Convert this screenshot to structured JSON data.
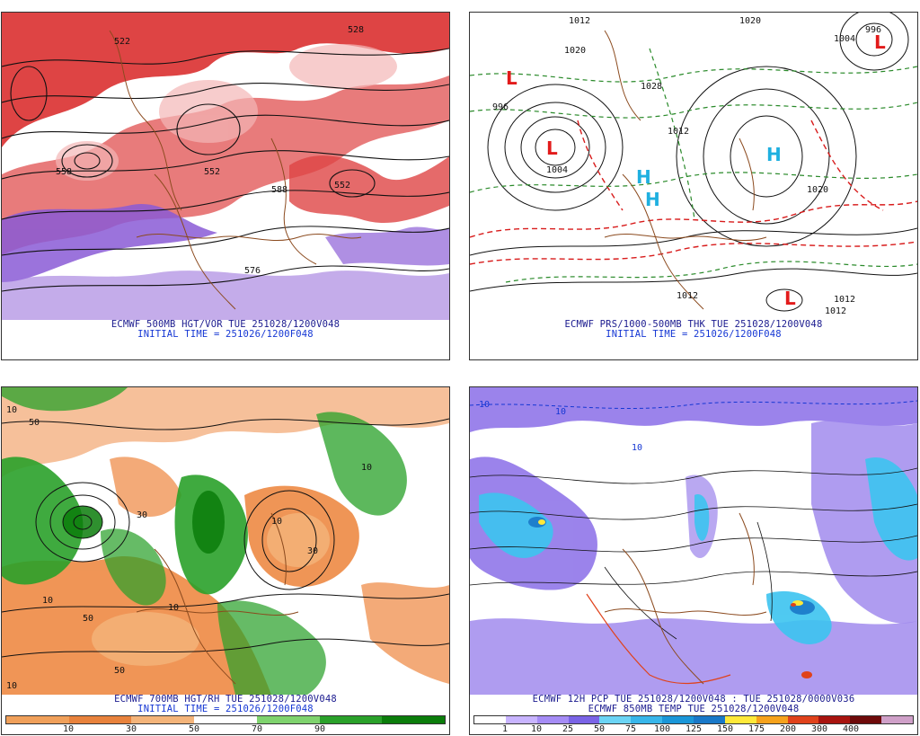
{
  "panels": {
    "p1": {
      "caption": "ECMWF 500MB HGT/VOR TUE 251028/1200V048",
      "initial": "INITIAL TIME = 251026/1200F048"
    },
    "p2": {
      "caption": "ECMWF PRS/1000-500MB THK TUE 251028/1200V048",
      "initial": "INITIAL TIME = 251026/1200F048"
    },
    "p3": {
      "caption": "ECMWF 700MB HGT/RH TUE 251028/1200V048",
      "initial": "INITIAL TIME = 251026/1200F048",
      "legend": {
        "colors": [
          "#f0a05a",
          "#e8823c",
          "#f4b47a",
          "#ffffff",
          "#7fd36e",
          "#2aa12a",
          "#0b7d0b"
        ],
        "ticks": [
          "10",
          "30",
          "50",
          "70",
          "90"
        ]
      }
    },
    "p4": {
      "caption": "ECMWF 12H PCP TUE 251028/1200V048 : TUE 251028/0000V036",
      "caption2": "ECMWF 850MB TEMP TUE 251028/1200V048",
      "legend": {
        "colors": [
          "#ffffff",
          "#c8b4ff",
          "#a58cf5",
          "#7a64e6",
          "#6bd4f5",
          "#38b6ea",
          "#1a96d8",
          "#1978c8",
          "#ffe93a",
          "#f6a21c",
          "#e0421b",
          "#a8140f",
          "#6e0a0a",
          "#cfa0c8"
        ],
        "ticks": [
          "1",
          "10",
          "25",
          "50",
          "75",
          "100",
          "125",
          "150",
          "175",
          "200",
          "300",
          "400"
        ]
      }
    }
  },
  "map_labels": {
    "p1": [
      "522",
      "552",
      "576",
      "528",
      "552",
      "588",
      "558"
    ],
    "p2": [
      "1012",
      "1020",
      "1028",
      "996",
      "1012",
      "1004",
      "1020",
      "1012",
      "1020",
      "1012",
      "1012",
      "996",
      "1004",
      "L",
      "L",
      "L",
      "H",
      "H",
      "H",
      "L"
    ],
    "p3": [
      "10",
      "50",
      "10",
      "30",
      "50",
      "30",
      "10",
      "10",
      "50",
      "10",
      "10"
    ],
    "p4": [
      "10",
      "10",
      "10"
    ]
  },
  "colors": {
    "vorticity_red": "#d11a1a",
    "vorticity_purple": "#8a5bd6",
    "contour_black": "#111111",
    "borders_brown": "#8b4a1e",
    "thickness_red": "#d81b1b",
    "thickness_green": "#2a8a2a",
    "pressure_low": "#e21b1b",
    "pressure_high": "#1fb0e0",
    "rh_orange": "#ee8a44",
    "rh_green": "#2aa12a",
    "pcp_purple": "#8a6ee8",
    "pcp_cyan": "#3cc4f0"
  }
}
